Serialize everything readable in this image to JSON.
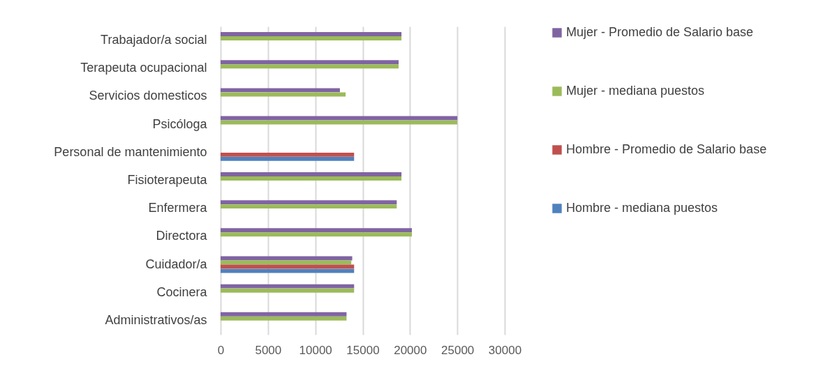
{
  "chart_data": {
    "type": "bar",
    "orientation": "horizontal",
    "categories": [
      "Trabajador/a social",
      "Terapeuta ocupacional",
      "Servicios domesticos",
      "Psicóloga",
      "Personal de mantenimiento",
      "Fisioterapeuta",
      "Enfermera",
      "Directora",
      "Cuidador/a",
      "Cocinera",
      "Administrativos/as"
    ],
    "series": [
      {
        "name": "Mujer - Promedio de Salario base",
        "color": "#8064a2",
        "values": [
          19100,
          18800,
          12600,
          25000,
          null,
          19100,
          18600,
          20200,
          13900,
          14100,
          13300
        ]
      },
      {
        "name": "Mujer - mediana puestos",
        "color": "#9bbb59",
        "values": [
          19100,
          18800,
          13200,
          25000,
          null,
          19100,
          18600,
          20200,
          13800,
          14100,
          13300
        ]
      },
      {
        "name": "Hombre - Promedio de Salario base",
        "color": "#c0504d",
        "values": [
          null,
          null,
          null,
          null,
          14100,
          null,
          null,
          null,
          14100,
          null,
          null
        ]
      },
      {
        "name": "Hombre - mediana puestos",
        "color": "#4f81bd",
        "values": [
          null,
          null,
          null,
          null,
          14100,
          null,
          null,
          null,
          14100,
          null,
          null
        ]
      }
    ],
    "xlim": [
      0,
      30000
    ],
    "xticks": [
      0,
      5000,
      10000,
      15000,
      20000,
      25000,
      30000
    ],
    "grid": "x",
    "legend": "right"
  }
}
